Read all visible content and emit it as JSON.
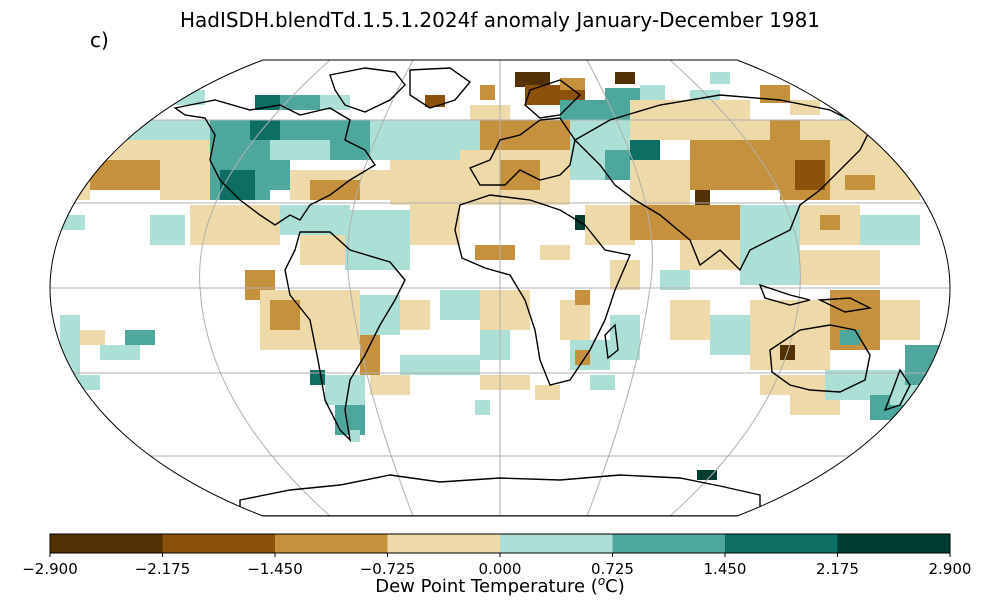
{
  "title": "HadISDH.blendTd.1.5.1.2024f anomaly January-December 1981",
  "panel_label": "c)",
  "colorbar": {
    "label_prefix": "Dew Point Temperature (",
    "label_unit_sup": "o",
    "label_suffix": "C)",
    "ticks": [
      "−2.900",
      "−2.175",
      "−1.450",
      "−0.725",
      "0.000",
      "0.725",
      "1.450",
      "2.175",
      "2.900"
    ],
    "bins": [
      {
        "from": -2.9,
        "to": -2.175,
        "color": "#543005"
      },
      {
        "from": -2.175,
        "to": -1.45,
        "color": "#8c510a"
      },
      {
        "from": -1.45,
        "to": -0.725,
        "color": "#c6913d"
      },
      {
        "from": -0.725,
        "to": 0.0,
        "color": "#eed9a8"
      },
      {
        "from": 0.0,
        "to": 0.725,
        "color": "#acdfd6"
      },
      {
        "from": 0.725,
        "to": 1.45,
        "color": "#4ea79c"
      },
      {
        "from": 1.45,
        "to": 2.175,
        "color": "#0d6e64"
      },
      {
        "from": 2.175,
        "to": 2.9,
        "color": "#003c30"
      }
    ]
  },
  "map": {
    "projection": "Robinson",
    "gridlines": true,
    "coastlines": true
  }
}
